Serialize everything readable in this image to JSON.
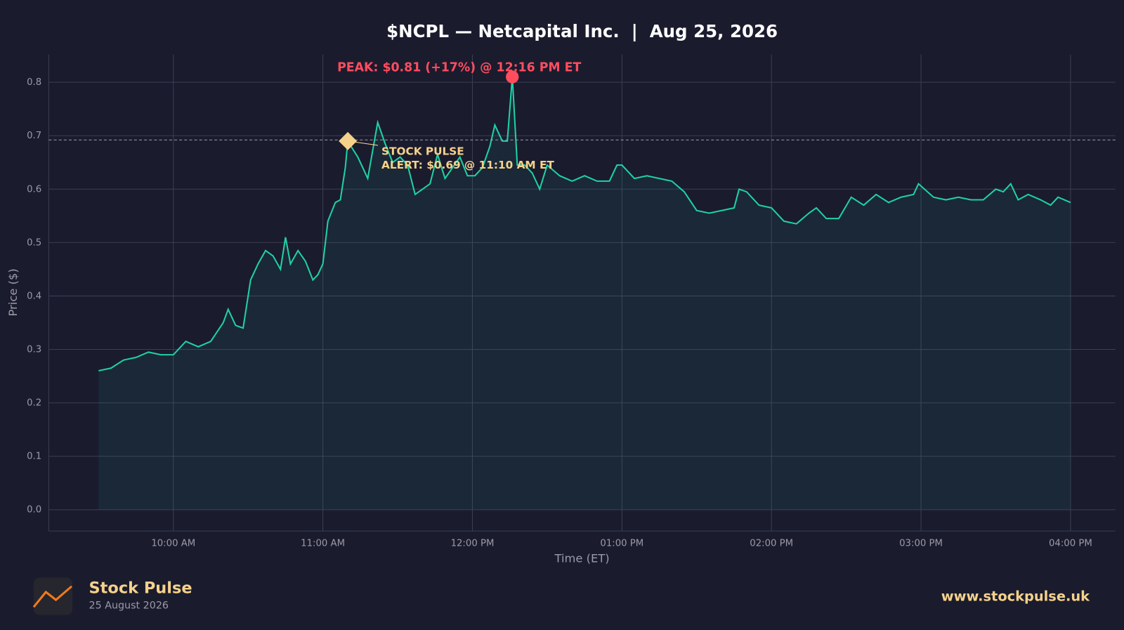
{
  "chart_data": {
    "type": "line",
    "title": "$NCPL — Netcapital Inc.  |  Aug 25, 2026",
    "x_label": "Time (ET)",
    "y_label": "Price ($)",
    "x": [
      "09:30 AM",
      "09:35 AM",
      "09:40 AM",
      "09:45 AM",
      "09:50 AM",
      "09:55 AM",
      "10:00 AM",
      "10:05 AM",
      "10:10 AM",
      "10:15 AM",
      "10:20 AM",
      "10:22 AM",
      "10:25 AM",
      "10:28 AM",
      "10:31 AM",
      "10:34 AM",
      "10:37 AM",
      "10:40 AM",
      "10:43 AM",
      "10:45 AM",
      "10:47 AM",
      "10:50 AM",
      "10:53 AM",
      "10:56 AM",
      "10:58 AM",
      "11:00 AM",
      "11:02 AM",
      "11:05 AM",
      "11:07 AM",
      "11:09 AM",
      "11:10 AM",
      "11:12 AM",
      "11:14 AM",
      "11:16 AM",
      "11:18 AM",
      "11:22 AM",
      "11:25 AM",
      "11:28 AM",
      "11:31 AM",
      "11:34 AM",
      "11:37 AM",
      "11:40 AM",
      "11:43 AM",
      "11:46 AM",
      "11:49 AM",
      "11:52 AM",
      "11:55 AM",
      "11:58 AM",
      "12:01 PM",
      "12:04 PM",
      "12:07 PM",
      "12:09 PM",
      "12:12 PM",
      "12:14 PM",
      "12:16 PM",
      "12:18 PM",
      "12:21 PM",
      "12:24 PM",
      "12:27 PM",
      "12:30 PM",
      "12:35 PM",
      "12:40 PM",
      "12:45 PM",
      "12:50 PM",
      "12:55 PM",
      "12:58 PM",
      "01:00 PM",
      "01:05 PM",
      "01:10 PM",
      "01:15 PM",
      "01:20 PM",
      "01:25 PM",
      "01:30 PM",
      "01:35 PM",
      "01:40 PM",
      "01:45 PM",
      "01:47 PM",
      "01:50 PM",
      "01:55 PM",
      "02:00 PM",
      "02:05 PM",
      "02:10 PM",
      "02:15 PM",
      "02:18 PM",
      "02:22 PM",
      "02:27 PM",
      "02:32 PM",
      "02:37 PM",
      "02:42 PM",
      "02:47 PM",
      "02:52 PM",
      "02:57 PM",
      "02:59 PM",
      "03:05 PM",
      "03:10 PM",
      "03:15 PM",
      "03:20 PM",
      "03:25 PM",
      "03:30 PM",
      "03:33 PM",
      "03:36 PM",
      "03:39 PM",
      "03:43 PM",
      "03:48 PM",
      "03:52 PM",
      "03:55 PM",
      "04:00 PM"
    ],
    "series": [
      {
        "name": "NCPL",
        "color": "#1fd1a5",
        "values": [
          0.26,
          0.265,
          0.28,
          0.285,
          0.295,
          0.29,
          0.29,
          0.315,
          0.305,
          0.315,
          0.35,
          0.375,
          0.345,
          0.34,
          0.43,
          0.46,
          0.485,
          0.475,
          0.45,
          0.51,
          0.46,
          0.485,
          0.465,
          0.43,
          0.44,
          0.46,
          0.54,
          0.575,
          0.58,
          0.64,
          0.69,
          0.675,
          0.66,
          0.64,
          0.62,
          0.725,
          0.685,
          0.65,
          0.66,
          0.645,
          0.59,
          0.6,
          0.61,
          0.665,
          0.62,
          0.64,
          0.66,
          0.625,
          0.625,
          0.64,
          0.68,
          0.72,
          0.69,
          0.69,
          0.81,
          0.645,
          0.645,
          0.63,
          0.6,
          0.645,
          0.625,
          0.615,
          0.625,
          0.615,
          0.615,
          0.645,
          0.645,
          0.62,
          0.625,
          0.62,
          0.615,
          0.595,
          0.56,
          0.555,
          0.56,
          0.565,
          0.6,
          0.595,
          0.57,
          0.565,
          0.54,
          0.535,
          0.555,
          0.565,
          0.545,
          0.545,
          0.585,
          0.57,
          0.59,
          0.575,
          0.585,
          0.59,
          0.61,
          0.585,
          0.58,
          0.585,
          0.58,
          0.58,
          0.6,
          0.595,
          0.61,
          0.58,
          0.59,
          0.58,
          0.57,
          0.585,
          0.575
        ]
      }
    ],
    "xlim": [
      "09:10 AM",
      "04:18 PM"
    ],
    "xticks": [
      "10:00 AM",
      "11:00 AM",
      "12:00 PM",
      "01:00 PM",
      "02:00 PM",
      "03:00 PM",
      "04:00 PM"
    ],
    "ylim": [
      -0.04,
      0.852
    ],
    "yticks": [
      {
        "value": 0,
        "label": "0.0"
      },
      0.1,
      0.2,
      0.3,
      0.4,
      0.5,
      0.6,
      0.7,
      0.8
    ],
    "grid": true,
    "reference_line": 0.692,
    "peak": {
      "x": "12:16 PM",
      "value": 0.81,
      "label": "PEAK: $0.81 (+17%) @ 12:16 PM ET",
      "color": "#ff4d5e"
    },
    "alert": {
      "x": "11:10 AM",
      "value": 0.69,
      "label": [
        "STOCK PULSE",
        "ALERT: $0.69 @ 11:10 AM ET"
      ],
      "color": "#f5d28a"
    }
  },
  "footer": {
    "brand": "Stock Pulse",
    "date": "25 August 2026",
    "url": "www.stockpulse.uk"
  }
}
